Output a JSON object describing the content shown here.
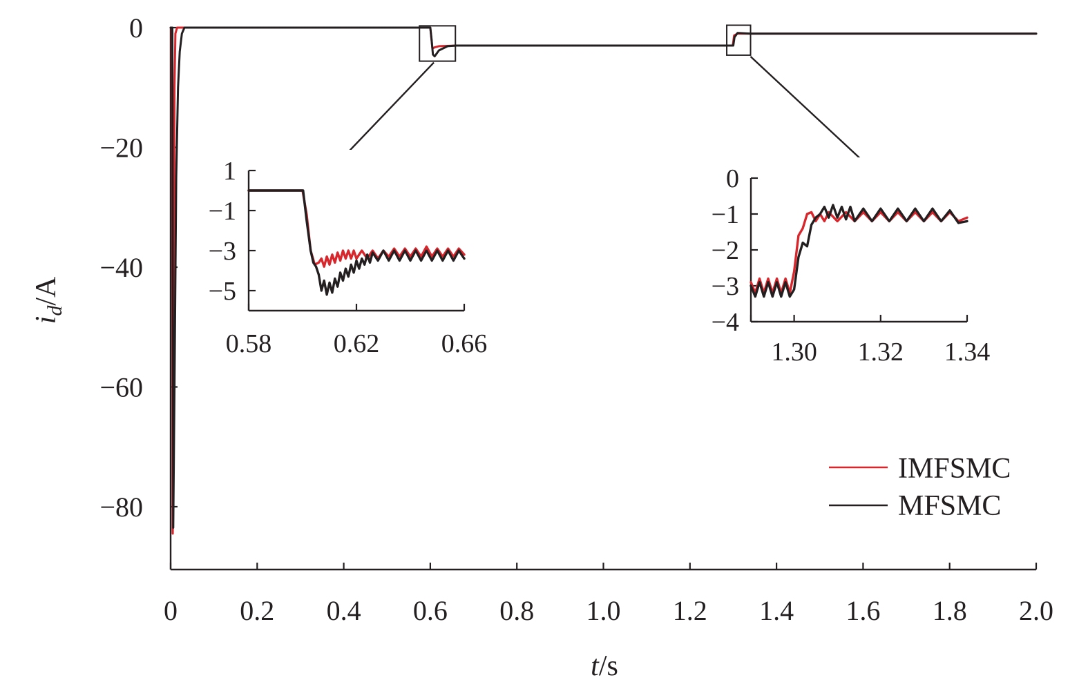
{
  "chart_data": {
    "type": "line",
    "title": "",
    "xlabel": {
      "italic": "t",
      "rest": "/s"
    },
    "ylabel": {
      "italic": "i",
      "subscript": "d",
      "rest": "/A"
    },
    "xlim": [
      0,
      2.0
    ],
    "ylim": [
      -90,
      0
    ],
    "xticks": [
      0,
      0.2,
      0.4,
      0.6,
      0.8,
      1.0,
      1.2,
      1.4,
      1.6,
      1.8,
      2.0
    ],
    "xtick_labels": [
      "0",
      "0.2",
      "0.4",
      "0.6",
      "0.8",
      "1.0",
      "1.2",
      "1.4",
      "1.6",
      "1.8",
      "2.0"
    ],
    "yticks": [
      0,
      -20,
      -40,
      -60,
      -80
    ],
    "ytick_labels": [
      "0",
      "−20",
      "−40",
      "−60",
      "−80"
    ],
    "grid": false,
    "legend_position": "bottom-right",
    "series": [
      {
        "name": "IMFSMC",
        "color": "#d7262c",
        "points": [
          [
            0,
            0
          ],
          [
            0.003,
            0
          ],
          [
            0.004,
            -40
          ],
          [
            0.005,
            -84.5
          ],
          [
            0.007,
            -60
          ],
          [
            0.009,
            -10
          ],
          [
            0.011,
            -1
          ],
          [
            0.015,
            0
          ],
          [
            0.6,
            0
          ],
          [
            0.602,
            -1.5
          ],
          [
            0.605,
            -3.5
          ],
          [
            0.61,
            -3.3
          ],
          [
            0.62,
            -3.1
          ],
          [
            0.66,
            -3.0
          ],
          [
            0.7,
            -3.0
          ],
          [
            1.0,
            -3.0
          ],
          [
            1.2,
            -3.0
          ],
          [
            1.299,
            -3.0
          ],
          [
            1.302,
            -1.3
          ],
          [
            1.31,
            -1.0
          ],
          [
            1.34,
            -1.0
          ],
          [
            1.6,
            -1.0
          ],
          [
            2.0,
            -1.0
          ]
        ]
      },
      {
        "name": "MFSMC",
        "color": "#231f20",
        "points": [
          [
            0,
            0
          ],
          [
            0.004,
            0
          ],
          [
            0.005,
            -40
          ],
          [
            0.006,
            -83.5
          ],
          [
            0.009,
            -60
          ],
          [
            0.013,
            -25
          ],
          [
            0.017,
            -10
          ],
          [
            0.021,
            -4
          ],
          [
            0.026,
            -1
          ],
          [
            0.032,
            0
          ],
          [
            0.6,
            0
          ],
          [
            0.603,
            -2.0
          ],
          [
            0.606,
            -4.5
          ],
          [
            0.61,
            -4.8
          ],
          [
            0.62,
            -3.8
          ],
          [
            0.64,
            -3.1
          ],
          [
            0.66,
            -3.0
          ],
          [
            0.7,
            -3.0
          ],
          [
            1.0,
            -3.0
          ],
          [
            1.2,
            -3.0
          ],
          [
            1.3,
            -3.0
          ],
          [
            1.303,
            -1.6
          ],
          [
            1.31,
            -0.9
          ],
          [
            1.34,
            -1.0
          ],
          [
            1.6,
            -1.0
          ],
          [
            2.0,
            -1.0
          ]
        ]
      }
    ],
    "insets": [
      {
        "xlim": [
          0.58,
          0.66
        ],
        "ylim": [
          -6,
          1
        ],
        "xticks": [
          0.58,
          0.62,
          0.66
        ],
        "xtick_labels": [
          "0.58",
          "0.62",
          "0.66"
        ],
        "yticks": [
          1,
          -1,
          -3,
          -5
        ],
        "ytick_labels": [
          "1",
          "−1",
          "−3",
          "−5"
        ],
        "series": [
          {
            "name": "IMFSMC",
            "points": [
              [
                0.58,
                0
              ],
              [
                0.6,
                0
              ],
              [
                0.6015,
                -1.2
              ],
              [
                0.603,
                -3.0
              ],
              [
                0.6045,
                -3.7
              ],
              [
                0.606,
                -3.6
              ],
              [
                0.607,
                -3.4
              ],
              [
                0.608,
                -3.8
              ],
              [
                0.609,
                -3.3
              ],
              [
                0.61,
                -3.7
              ],
              [
                0.611,
                -3.2
              ],
              [
                0.612,
                -3.6
              ],
              [
                0.613,
                -3.1
              ],
              [
                0.614,
                -3.5
              ],
              [
                0.615,
                -3.0
              ],
              [
                0.616,
                -3.4
              ],
              [
                0.617,
                -3.0
              ],
              [
                0.618,
                -3.4
              ],
              [
                0.619,
                -3.0
              ],
              [
                0.62,
                -3.4
              ],
              [
                0.622,
                -3.0
              ],
              [
                0.624,
                -3.4
              ],
              [
                0.626,
                -3.0
              ],
              [
                0.628,
                -3.4
              ],
              [
                0.63,
                -3.0
              ],
              [
                0.632,
                -3.3
              ],
              [
                0.634,
                -2.9
              ],
              [
                0.636,
                -3.3
              ],
              [
                0.638,
                -2.9
              ],
              [
                0.64,
                -3.3
              ],
              [
                0.642,
                -2.9
              ],
              [
                0.644,
                -3.3
              ],
              [
                0.646,
                -2.8
              ],
              [
                0.648,
                -3.3
              ],
              [
                0.65,
                -2.9
              ],
              [
                0.652,
                -3.3
              ],
              [
                0.654,
                -2.9
              ],
              [
                0.656,
                -3.3
              ],
              [
                0.658,
                -2.9
              ],
              [
                0.66,
                -3.2
              ]
            ]
          },
          {
            "name": "MFSMC",
            "points": [
              [
                0.58,
                0
              ],
              [
                0.6002,
                0
              ],
              [
                0.6015,
                -1.5
              ],
              [
                0.603,
                -3.0
              ],
              [
                0.604,
                -3.6
              ],
              [
                0.605,
                -3.8
              ],
              [
                0.606,
                -4.2
              ],
              [
                0.607,
                -5.0
              ],
              [
                0.608,
                -4.5
              ],
              [
                0.609,
                -5.2
              ],
              [
                0.61,
                -4.6
              ],
              [
                0.611,
                -5.1
              ],
              [
                0.612,
                -4.4
              ],
              [
                0.613,
                -4.8
              ],
              [
                0.614,
                -4.1
              ],
              [
                0.615,
                -4.5
              ],
              [
                0.616,
                -3.9
              ],
              [
                0.617,
                -4.3
              ],
              [
                0.618,
                -3.7
              ],
              [
                0.619,
                -4.1
              ],
              [
                0.62,
                -3.5
              ],
              [
                0.621,
                -3.9
              ],
              [
                0.622,
                -3.4
              ],
              [
                0.623,
                -3.7
              ],
              [
                0.624,
                -3.2
              ],
              [
                0.625,
                -3.6
              ],
              [
                0.626,
                -3.1
              ],
              [
                0.628,
                -3.5
              ],
              [
                0.63,
                -3.0
              ],
              [
                0.632,
                -3.5
              ],
              [
                0.634,
                -3.0
              ],
              [
                0.636,
                -3.5
              ],
              [
                0.638,
                -3.0
              ],
              [
                0.64,
                -3.5
              ],
              [
                0.642,
                -3.0
              ],
              [
                0.644,
                -3.5
              ],
              [
                0.646,
                -3.0
              ],
              [
                0.648,
                -3.5
              ],
              [
                0.65,
                -3.0
              ],
              [
                0.652,
                -3.5
              ],
              [
                0.654,
                -3.0
              ],
              [
                0.656,
                -3.5
              ],
              [
                0.658,
                -3.0
              ],
              [
                0.66,
                -3.4
              ]
            ]
          }
        ]
      },
      {
        "xlim": [
          1.29,
          1.34
        ],
        "ylim": [
          -4,
          0
        ],
        "xticks": [
          1.29,
          1.3,
          1.32,
          1.34
        ],
        "xtick_labels": [
          "",
          "1.30",
          "1.32",
          "1.34"
        ],
        "yticks": [
          0,
          -1,
          -2,
          -3,
          -4
        ],
        "ytick_labels": [
          "0",
          "−1",
          "−2",
          "−3",
          "−4"
        ],
        "series": [
          {
            "name": "IMFSMC",
            "points": [
              [
                1.29,
                -2.9
              ],
              [
                1.291,
                -3.2
              ],
              [
                1.292,
                -2.8
              ],
              [
                1.293,
                -3.2
              ],
              [
                1.294,
                -2.8
              ],
              [
                1.295,
                -3.2
              ],
              [
                1.296,
                -2.8
              ],
              [
                1.297,
                -3.2
              ],
              [
                1.298,
                -2.8
              ],
              [
                1.299,
                -3.2
              ],
              [
                1.3,
                -2.6
              ],
              [
                1.301,
                -1.6
              ],
              [
                1.302,
                -1.4
              ],
              [
                1.303,
                -1.0
              ],
              [
                1.304,
                -0.95
              ],
              [
                1.305,
                -1.2
              ],
              [
                1.306,
                -1.0
              ],
              [
                1.307,
                -1.2
              ],
              [
                1.308,
                -0.95
              ],
              [
                1.31,
                -1.2
              ],
              [
                1.312,
                -0.95
              ],
              [
                1.314,
                -1.2
              ],
              [
                1.316,
                -0.95
              ],
              [
                1.318,
                -1.2
              ],
              [
                1.32,
                -0.95
              ],
              [
                1.322,
                -1.2
              ],
              [
                1.324,
                -0.95
              ],
              [
                1.326,
                -1.2
              ],
              [
                1.328,
                -0.95
              ],
              [
                1.33,
                -1.2
              ],
              [
                1.332,
                -0.95
              ],
              [
                1.334,
                -1.2
              ],
              [
                1.336,
                -0.95
              ],
              [
                1.338,
                -1.2
              ],
              [
                1.34,
                -1.1
              ]
            ]
          },
          {
            "name": "MFSMC",
            "points": [
              [
                1.29,
                -3.0
              ],
              [
                1.291,
                -3.3
              ],
              [
                1.292,
                -2.9
              ],
              [
                1.293,
                -3.3
              ],
              [
                1.294,
                -2.9
              ],
              [
                1.295,
                -3.3
              ],
              [
                1.296,
                -2.9
              ],
              [
                1.297,
                -3.3
              ],
              [
                1.298,
                -2.9
              ],
              [
                1.299,
                -3.3
              ],
              [
                1.3,
                -3.1
              ],
              [
                1.301,
                -2.2
              ],
              [
                1.302,
                -1.8
              ],
              [
                1.303,
                -1.9
              ],
              [
                1.304,
                -1.3
              ],
              [
                1.305,
                -1.1
              ],
              [
                1.306,
                -1.0
              ],
              [
                1.307,
                -0.8
              ],
              [
                1.308,
                -1.1
              ],
              [
                1.309,
                -0.75
              ],
              [
                1.31,
                -1.1
              ],
              [
                1.311,
                -0.8
              ],
              [
                1.312,
                -1.15
              ],
              [
                1.313,
                -0.8
              ],
              [
                1.314,
                -1.2
              ],
              [
                1.316,
                -0.85
              ],
              [
                1.318,
                -1.2
              ],
              [
                1.32,
                -0.85
              ],
              [
                1.322,
                -1.2
              ],
              [
                1.324,
                -0.85
              ],
              [
                1.326,
                -1.2
              ],
              [
                1.328,
                -0.85
              ],
              [
                1.33,
                -1.2
              ],
              [
                1.332,
                -0.85
              ],
              [
                1.334,
                -1.2
              ],
              [
                1.336,
                -0.9
              ],
              [
                1.338,
                -1.25
              ],
              [
                1.34,
                -1.2
              ]
            ]
          }
        ]
      }
    ]
  }
}
